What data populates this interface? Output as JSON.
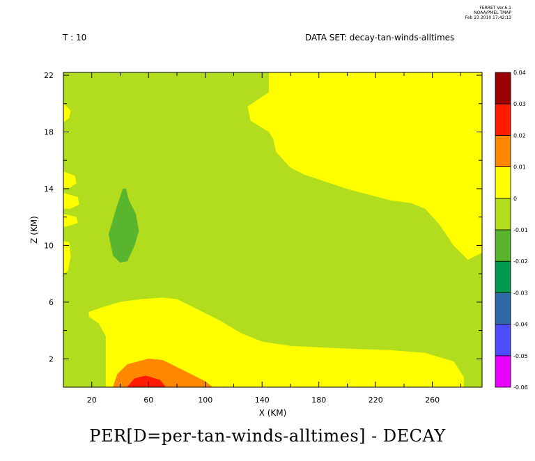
{
  "header": {
    "time_label": "T : 10",
    "dataset_label": "DATA SET: decay-tan-winds-alltimes",
    "stamp_lines": [
      "FERRET Ver.6.1",
      "NOAA/PMEL TMAP",
      "Feb 23 2010 17:42:13"
    ]
  },
  "caption": "PER[D=per-tan-winds-alltimes] - DECAY",
  "colors": {
    "-0.06": "#e600ff",
    "-0.05": "#4d4dff",
    "-0.04": "#2e6aa8",
    "-0.03": "#009a4e",
    "-0.02": "#5ab52e",
    "-0.01": "#b2dd1e",
    "0": "#ffff00",
    "0.01": "#ff8800",
    "0.02": "#ff1a00",
    "0.03": "#9a0000"
  },
  "chart_data": {
    "type": "heatmap",
    "title": "PER[D=per-tan-winds-alltimes] - DECAY",
    "xlabel": "X (KM)",
    "ylabel": "Z (KM)",
    "xlim": [
      0,
      295
    ],
    "ylim": [
      0,
      22.2
    ],
    "x_ticks": [
      20,
      60,
      100,
      140,
      180,
      220,
      260
    ],
    "y_ticks": [
      2,
      6,
      10,
      14,
      18,
      22
    ],
    "colorbar": {
      "levels": [
        -0.06,
        -0.05,
        -0.04,
        -0.03,
        -0.02,
        -0.01,
        0,
        0.01,
        0.02,
        0.03,
        0.04
      ],
      "labels": [
        "-0.06",
        "-0.05",
        "-0.04",
        "-0.03",
        "-0.02",
        "-0.01",
        "0",
        "0.01",
        "0.02",
        "0.03",
        "0.04"
      ],
      "bands": [
        "#e600ff",
        "#4d4dff",
        "#2e6aa8",
        "#009a4e",
        "#5ab52e",
        "#b2dd1e",
        "#ffff00",
        "#ff8800",
        "#ff1a00",
        "#9a0000"
      ]
    },
    "regions": [
      {
        "band": "-0.01 to 0",
        "color": "#b2dd1e",
        "points": [
          [
            0,
            0
          ],
          [
            295,
            0
          ],
          [
            295,
            22.2
          ],
          [
            0,
            22.2
          ]
        ]
      },
      {
        "band": "0 to 0.01",
        "color": "#ffff00",
        "points": [
          [
            145,
            22.2
          ],
          [
            145,
            20.8
          ],
          [
            130,
            19.8
          ],
          [
            132,
            18.8
          ],
          [
            145,
            18
          ],
          [
            148,
            17.5
          ],
          [
            150,
            16.6
          ],
          [
            160,
            15.5
          ],
          [
            170,
            15
          ],
          [
            185,
            14.5
          ],
          [
            200,
            14
          ],
          [
            215,
            13.6
          ],
          [
            230,
            13.2
          ],
          [
            245,
            13
          ],
          [
            255,
            12.6
          ],
          [
            265,
            11.5
          ],
          [
            275,
            10
          ],
          [
            285,
            9
          ],
          [
            295,
            9.5
          ],
          [
            295,
            22.2
          ]
        ]
      },
      {
        "band": "0 to 0.01",
        "color": "#ffff00",
        "points": [
          [
            0,
            10.3
          ],
          [
            4,
            10.2
          ],
          [
            5,
            9.2
          ],
          [
            3,
            8.2
          ],
          [
            0,
            8
          ]
        ]
      },
      {
        "band": "0 to 0.01",
        "color": "#ffff00",
        "points": [
          [
            0,
            15.2
          ],
          [
            8,
            14.9
          ],
          [
            9,
            14.4
          ],
          [
            5,
            14.1
          ],
          [
            0,
            14
          ]
        ]
      },
      {
        "band": "0 to 0.01",
        "color": "#ffff00",
        "points": [
          [
            0,
            13.7
          ],
          [
            10,
            13.4
          ],
          [
            11,
            12.9
          ],
          [
            5,
            12.6
          ],
          [
            0,
            12.6
          ]
        ]
      },
      {
        "band": "0 to 0.01",
        "color": "#ffff00",
        "points": [
          [
            0,
            12.2
          ],
          [
            9,
            12
          ],
          [
            10,
            11.6
          ],
          [
            4,
            11.4
          ],
          [
            0,
            11.3
          ]
        ]
      },
      {
        "band": "0 to 0.01",
        "color": "#ffff00",
        "points": [
          [
            0,
            20
          ],
          [
            5,
            19.5
          ],
          [
            4,
            19
          ],
          [
            0,
            18.7
          ]
        ]
      },
      {
        "band": "0 to 0.01",
        "color": "#ffff00",
        "points": [
          [
            18,
            5.3
          ],
          [
            30,
            5.7
          ],
          [
            40,
            6
          ],
          [
            55,
            6.2
          ],
          [
            70,
            6.3
          ],
          [
            80,
            6.2
          ],
          [
            90,
            5.7
          ],
          [
            100,
            5.2
          ],
          [
            110,
            4.7
          ],
          [
            125,
            3.8
          ],
          [
            140,
            3.2
          ],
          [
            160,
            2.9
          ],
          [
            180,
            2.8
          ],
          [
            200,
            2.7
          ],
          [
            230,
            2.6
          ],
          [
            255,
            2.4
          ],
          [
            275,
            1.8
          ],
          [
            282,
            0.7
          ],
          [
            282,
            0
          ],
          [
            30,
            0
          ],
          [
            30,
            3.6
          ],
          [
            25,
            4.5
          ],
          [
            18,
            5
          ]
        ]
      },
      {
        "band": "0.01 to 0.02",
        "color": "#ff8800",
        "points": [
          [
            35,
            0
          ],
          [
            38,
            0.9
          ],
          [
            45,
            1.6
          ],
          [
            60,
            2
          ],
          [
            70,
            1.9
          ],
          [
            80,
            1.4
          ],
          [
            90,
            0.9
          ],
          [
            100,
            0.4
          ],
          [
            105,
            0
          ],
          [
            35,
            0
          ]
        ]
      },
      {
        "band": "0.02 to 0.03",
        "color": "#ff1a00",
        "points": [
          [
            45,
            0
          ],
          [
            50,
            0.6
          ],
          [
            58,
            0.8
          ],
          [
            68,
            0.5
          ],
          [
            72,
            0
          ]
        ]
      },
      {
        "band": "-0.02 to -0.01",
        "color": "#5ab52e",
        "points": [
          [
            42,
            14
          ],
          [
            38,
            12.8
          ],
          [
            32,
            10.8
          ],
          [
            35,
            9.3
          ],
          [
            40,
            8.8
          ],
          [
            45,
            8.9
          ],
          [
            50,
            10
          ],
          [
            53,
            11
          ],
          [
            51,
            12.2
          ],
          [
            46,
            13.2
          ],
          [
            44,
            14
          ]
        ]
      }
    ]
  }
}
